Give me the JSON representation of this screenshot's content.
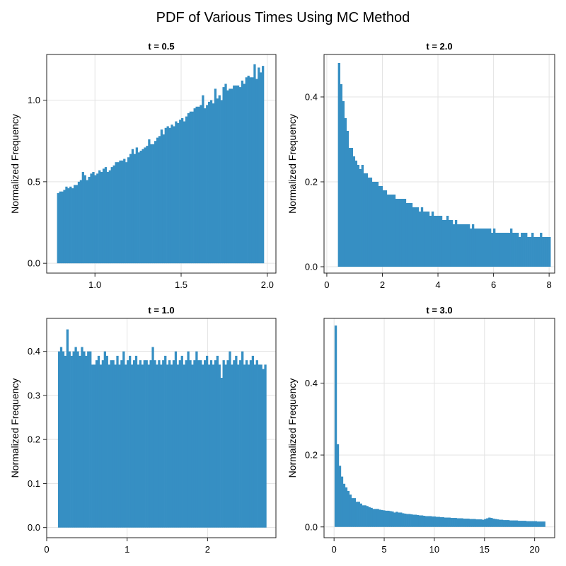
{
  "figure": {
    "title": "PDF of Various Times Using MC Method",
    "bar_color": "#368fc3"
  },
  "chart_data": [
    {
      "type": "bar",
      "title": "t = 0.5",
      "xlabel": "",
      "ylabel": "Normalized Frequency",
      "xlim": [
        0.72,
        2.05
      ],
      "ylim": [
        -0.06,
        1.28
      ],
      "xticks": [
        1.0,
        1.5,
        2.0
      ],
      "yticks": [
        0.0,
        0.5,
        1.0
      ],
      "xtick_labels": [
        "1.0",
        "1.5",
        "2.0"
      ],
      "ytick_labels": [
        "0.0",
        "0.5",
        "1.0"
      ],
      "grid": true,
      "bins": {
        "start": 0.78,
        "end": 1.98,
        "count": 100
      },
      "values": [
        0.43,
        0.44,
        0.44,
        0.45,
        0.47,
        0.46,
        0.47,
        0.46,
        0.48,
        0.48,
        0.5,
        0.51,
        0.56,
        0.54,
        0.51,
        0.53,
        0.55,
        0.56,
        0.54,
        0.55,
        0.57,
        0.56,
        0.58,
        0.59,
        0.56,
        0.57,
        0.59,
        0.6,
        0.62,
        0.62,
        0.63,
        0.63,
        0.64,
        0.62,
        0.65,
        0.67,
        0.7,
        0.67,
        0.71,
        0.68,
        0.69,
        0.7,
        0.71,
        0.72,
        0.76,
        0.73,
        0.73,
        0.75,
        0.77,
        0.78,
        0.82,
        0.79,
        0.83,
        0.84,
        0.83,
        0.85,
        0.84,
        0.87,
        0.86,
        0.88,
        0.89,
        0.87,
        0.9,
        0.92,
        0.93,
        0.93,
        0.95,
        0.96,
        0.96,
        0.97,
        1.03,
        0.95,
        0.97,
        0.99,
        1.0,
        0.98,
        1.07,
        1.01,
        1.03,
        1.0,
        1.08,
        1.1,
        1.06,
        1.07,
        1.07,
        1.09,
        1.09,
        1.09,
        1.08,
        1.12,
        1.1,
        1.14,
        1.15,
        1.14,
        1.14,
        1.22,
        1.13,
        1.2,
        1.17,
        1.21
      ]
    },
    {
      "type": "bar",
      "title": "t = 2.0",
      "xlabel": "",
      "ylabel": "Normalized Frequency",
      "xlim": [
        -0.1,
        8.2
      ],
      "ylim": [
        -0.015,
        0.5
      ],
      "xticks": [
        0,
        2,
        4,
        6,
        8
      ],
      "yticks": [
        0.0,
        0.2,
        0.4
      ],
      "xtick_labels": [
        "0",
        "2",
        "4",
        "6",
        "8"
      ],
      "ytick_labels": [
        "0.0",
        "0.2",
        "0.4"
      ],
      "grid": true,
      "bins": {
        "start": 0.4,
        "end": 8.05,
        "count": 100
      },
      "values": [
        0.48,
        0.43,
        0.39,
        0.35,
        0.32,
        0.28,
        0.28,
        0.26,
        0.25,
        0.24,
        0.23,
        0.24,
        0.22,
        0.22,
        0.21,
        0.21,
        0.2,
        0.2,
        0.2,
        0.19,
        0.19,
        0.18,
        0.18,
        0.17,
        0.17,
        0.17,
        0.17,
        0.16,
        0.16,
        0.16,
        0.16,
        0.16,
        0.15,
        0.15,
        0.15,
        0.14,
        0.14,
        0.14,
        0.13,
        0.14,
        0.13,
        0.13,
        0.13,
        0.12,
        0.13,
        0.12,
        0.12,
        0.12,
        0.12,
        0.11,
        0.11,
        0.12,
        0.11,
        0.11,
        0.1,
        0.11,
        0.1,
        0.1,
        0.1,
        0.1,
        0.1,
        0.1,
        0.09,
        0.1,
        0.09,
        0.09,
        0.09,
        0.09,
        0.09,
        0.09,
        0.09,
        0.09,
        0.08,
        0.09,
        0.08,
        0.08,
        0.08,
        0.08,
        0.08,
        0.08,
        0.08,
        0.09,
        0.08,
        0.08,
        0.08,
        0.07,
        0.08,
        0.08,
        0.08,
        0.07,
        0.07,
        0.08,
        0.07,
        0.07,
        0.07,
        0.08,
        0.07,
        0.07,
        0.07,
        0.07
      ]
    },
    {
      "type": "bar",
      "title": "t = 1.0",
      "xlabel": "",
      "ylabel": "Normalized Frequency",
      "xlim": [
        0,
        2.85
      ],
      "ylim": [
        -0.023,
        0.475
      ],
      "xticks": [
        0,
        1,
        2
      ],
      "yticks": [
        0.0,
        0.1,
        0.2,
        0.3,
        0.4
      ],
      "xtick_labels": [
        "0",
        "1",
        "2"
      ],
      "ytick_labels": [
        "0.0",
        "0.1",
        "0.2",
        "0.3",
        "0.4"
      ],
      "grid": true,
      "bins": {
        "start": 0.14,
        "end": 2.73,
        "count": 100
      },
      "values": [
        0.4,
        0.41,
        0.4,
        0.39,
        0.45,
        0.4,
        0.39,
        0.4,
        0.41,
        0.4,
        0.39,
        0.41,
        0.4,
        0.39,
        0.4,
        0.4,
        0.37,
        0.37,
        0.38,
        0.39,
        0.37,
        0.38,
        0.4,
        0.39,
        0.37,
        0.38,
        0.38,
        0.37,
        0.39,
        0.37,
        0.38,
        0.4,
        0.37,
        0.38,
        0.39,
        0.37,
        0.38,
        0.39,
        0.37,
        0.38,
        0.37,
        0.38,
        0.38,
        0.37,
        0.38,
        0.41,
        0.38,
        0.37,
        0.38,
        0.37,
        0.38,
        0.39,
        0.37,
        0.38,
        0.37,
        0.38,
        0.4,
        0.37,
        0.38,
        0.39,
        0.37,
        0.38,
        0.4,
        0.38,
        0.37,
        0.38,
        0.4,
        0.38,
        0.38,
        0.37,
        0.38,
        0.39,
        0.37,
        0.38,
        0.37,
        0.38,
        0.39,
        0.37,
        0.34,
        0.38,
        0.37,
        0.38,
        0.4,
        0.37,
        0.38,
        0.39,
        0.37,
        0.38,
        0.4,
        0.37,
        0.38,
        0.37,
        0.38,
        0.39,
        0.37,
        0.38,
        0.37,
        0.37,
        0.36,
        0.37
      ]
    },
    {
      "type": "bar",
      "title": "t = 3.0",
      "xlabel": "",
      "ylabel": "Normalized Frequency",
      "xlim": [
        -1,
        22
      ],
      "ylim": [
        -0.03,
        0.58
      ],
      "xticks": [
        0,
        5,
        10,
        15,
        20
      ],
      "yticks": [
        0.0,
        0.2,
        0.4
      ],
      "xtick_labels": [
        "0",
        "5",
        "10",
        "15",
        "20"
      ],
      "ytick_labels": [
        "0.0",
        "0.2",
        "0.4"
      ],
      "grid": true,
      "bins": {
        "start": 0.05,
        "end": 21.05,
        "count": 100
      },
      "values": [
        0.56,
        0.23,
        0.17,
        0.14,
        0.12,
        0.11,
        0.1,
        0.09,
        0.08,
        0.08,
        0.07,
        0.07,
        0.065,
        0.06,
        0.06,
        0.058,
        0.055,
        0.053,
        0.05,
        0.05,
        0.05,
        0.048,
        0.047,
        0.046,
        0.045,
        0.045,
        0.044,
        0.043,
        0.04,
        0.042,
        0.04,
        0.04,
        0.038,
        0.037,
        0.036,
        0.036,
        0.035,
        0.034,
        0.034,
        0.033,
        0.032,
        0.032,
        0.031,
        0.03,
        0.03,
        0.03,
        0.029,
        0.029,
        0.028,
        0.028,
        0.027,
        0.027,
        0.026,
        0.026,
        0.026,
        0.025,
        0.025,
        0.025,
        0.024,
        0.024,
        0.024,
        0.023,
        0.023,
        0.023,
        0.022,
        0.022,
        0.022,
        0.021,
        0.021,
        0.021,
        0.02,
        0.022,
        0.024,
        0.026,
        0.025,
        0.023,
        0.022,
        0.021,
        0.02,
        0.02,
        0.019,
        0.019,
        0.019,
        0.018,
        0.018,
        0.018,
        0.018,
        0.017,
        0.017,
        0.017,
        0.017,
        0.016,
        0.016,
        0.016,
        0.016,
        0.016,
        0.015,
        0.015,
        0.015,
        0.015
      ]
    }
  ]
}
